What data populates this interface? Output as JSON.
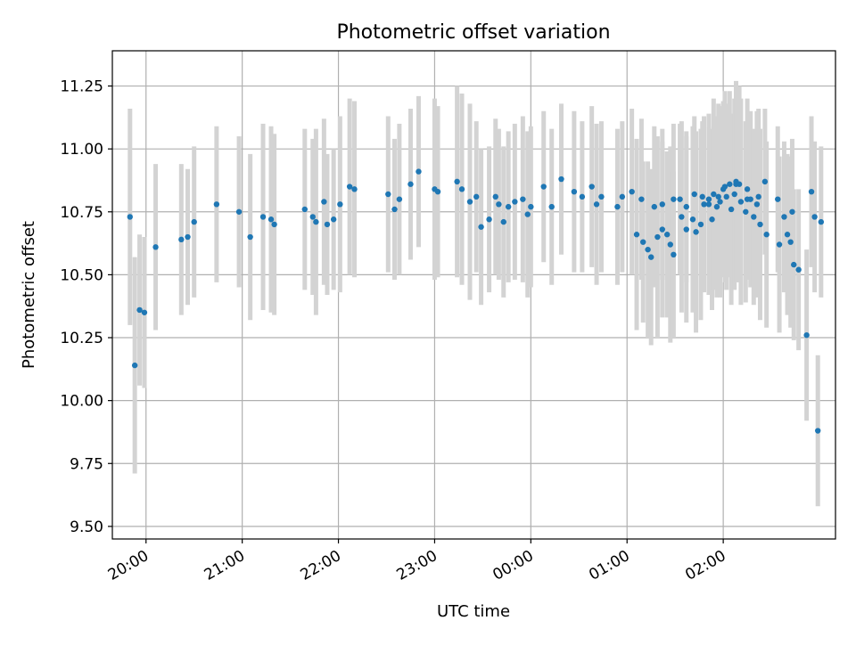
{
  "chart_data": {
    "type": "scatter",
    "title": "Photometric offset variation",
    "xlabel": "UTC time",
    "ylabel": "Photometric offset",
    "x_axis": {
      "kind": "time",
      "start_date": "2000-01-01",
      "xlim": [
        "2000-01-01T19:39:00",
        "2000-01-02T03:10:00"
      ],
      "ticks": [
        {
          "t": "2000-01-01T20:00:00",
          "label": "20:00"
        },
        {
          "t": "2000-01-01T21:00:00",
          "label": "21:00"
        },
        {
          "t": "2000-01-01T22:00:00",
          "label": "22:00"
        },
        {
          "t": "2000-01-01T23:00:00",
          "label": "23:00"
        },
        {
          "t": "2000-01-02T00:00:00",
          "label": "00:00"
        },
        {
          "t": "2000-01-02T01:00:00",
          "label": "01:00"
        },
        {
          "t": "2000-01-02T02:00:00",
          "label": "02:00"
        }
      ]
    },
    "y_axis": {
      "ylim": [
        9.45,
        11.39
      ],
      "ticks": [
        "9.50",
        "9.75",
        "10.00",
        "10.25",
        "10.50",
        "10.75",
        "11.00",
        "11.25"
      ]
    },
    "grid": true,
    "colors": {
      "marker": "#1f77b4",
      "errorbar": "#d3d3d3",
      "grid": "#b0b0b0"
    },
    "series": [
      {
        "x": [
          "2000-01-01T19:50:00",
          "2000-01-01T19:53:00",
          "2000-01-01T19:56:00",
          "2000-01-01T19:59:00",
          "2000-01-01T20:06:00",
          "2000-01-01T20:22:00",
          "2000-01-01T20:26:00",
          "2000-01-01T20:30:00",
          "2000-01-01T20:44:00",
          "2000-01-01T20:58:00",
          "2000-01-01T21:05:00",
          "2000-01-01T21:13:00",
          "2000-01-01T21:18:00",
          "2000-01-01T21:20:00",
          "2000-01-01T21:39:00",
          "2000-01-01T21:44:00",
          "2000-01-01T21:46:00",
          "2000-01-01T21:51:00",
          "2000-01-01T21:53:00",
          "2000-01-01T21:57:00",
          "2000-01-01T22:01:00",
          "2000-01-01T22:07:00",
          "2000-01-01T22:10:00",
          "2000-01-01T22:31:00",
          "2000-01-01T22:35:00",
          "2000-01-01T22:38:00",
          "2000-01-01T22:45:00",
          "2000-01-01T22:50:00",
          "2000-01-01T23:00:00",
          "2000-01-01T23:02:00",
          "2000-01-01T23:14:00",
          "2000-01-01T23:17:00",
          "2000-01-01T23:22:00",
          "2000-01-01T23:26:00",
          "2000-01-01T23:29:00",
          "2000-01-01T23:34:00",
          "2000-01-01T23:38:00",
          "2000-01-01T23:40:00",
          "2000-01-01T23:43:00",
          "2000-01-01T23:46:00",
          "2000-01-01T23:50:00",
          "2000-01-01T23:55:00",
          "2000-01-01T23:58:00",
          "2000-01-02T00:00:00",
          "2000-01-02T00:08:00",
          "2000-01-02T00:13:00",
          "2000-01-02T00:19:00",
          "2000-01-02T00:27:00",
          "2000-01-02T00:32:00",
          "2000-01-02T00:38:00",
          "2000-01-02T00:41:00",
          "2000-01-02T00:44:00",
          "2000-01-02T00:54:00",
          "2000-01-02T01:03:00",
          "2000-01-02T01:09:00",
          "2000-01-02T01:17:00",
          "2000-01-02T01:22:00",
          "2000-01-02T01:29:00",
          "2000-01-02T01:33:00",
          "2000-01-02T01:37:00",
          "2000-01-02T01:42:00",
          "2000-01-02T01:47:00",
          "2000-01-02T01:51:00",
          "2000-01-02T02:08:00",
          "2000-01-02T02:15:00",
          "2000-01-02T02:26:00",
          "2000-01-02T02:34:00",
          "2000-01-02T02:38:00",
          "2000-01-02T02:43:00",
          "2000-01-02T02:55:00",
          "2000-01-02T02:57:00",
          "2000-01-02T03:01:00"
        ],
        "y": [
          10.73,
          10.14,
          10.36,
          10.35,
          10.61,
          10.64,
          10.65,
          10.71,
          10.78,
          10.75,
          10.65,
          10.73,
          10.72,
          10.7,
          10.76,
          10.73,
          10.71,
          10.79,
          10.7,
          10.72,
          10.78,
          10.85,
          10.84,
          10.82,
          10.76,
          10.8,
          10.86,
          10.91,
          10.84,
          10.83,
          10.87,
          10.84,
          10.79,
          10.81,
          10.69,
          10.72,
          10.81,
          10.78,
          10.71,
          10.77,
          10.79,
          10.8,
          10.74,
          10.77,
          10.85,
          10.77,
          10.88,
          10.83,
          10.81,
          10.85,
          10.78,
          10.81,
          10.77,
          10.83,
          10.8,
          10.77,
          10.78,
          10.8,
          10.8,
          10.77,
          10.82,
          10.81,
          10.8,
          10.86,
          10.8,
          10.87,
          10.8,
          10.73,
          10.75,
          10.83,
          10.73,
          10.71
        ],
        "yerr": [
          0.43,
          0.43,
          0.3,
          0.3,
          0.33,
          0.3,
          0.27,
          0.3,
          0.31,
          0.3,
          0.33,
          0.37,
          0.37,
          0.36,
          0.32,
          0.31,
          0.37,
          0.33,
          0.28,
          0.28,
          0.35,
          0.35,
          0.35,
          0.31,
          0.28,
          0.3,
          0.3,
          0.3,
          0.36,
          0.34,
          0.38,
          0.38,
          0.39,
          0.3,
          0.31,
          0.29,
          0.31,
          0.3,
          0.3,
          0.3,
          0.31,
          0.33,
          0.33,
          0.32,
          0.3,
          0.31,
          0.3,
          0.32,
          0.3,
          0.32,
          0.32,
          0.3,
          0.31,
          0.33,
          0.32,
          0.32,
          0.3,
          0.3,
          0.3,
          0.3,
          0.31,
          0.3,
          0.29,
          0.3,
          0.3,
          0.29,
          0.29,
          0.3,
          0.29,
          0.3,
          0.3,
          0.3
        ]
      },
      {
        "x": [
          "2000-01-02T00:57:00",
          "2000-01-02T01:06:00",
          "2000-01-02T01:10:00",
          "2000-01-02T01:13:00",
          "2000-01-02T01:15:00",
          "2000-01-02T01:19:00",
          "2000-01-02T01:22:00",
          "2000-01-02T01:25:00",
          "2000-01-02T01:27:00",
          "2000-01-02T01:29:00",
          "2000-01-02T01:34:00",
          "2000-01-02T01:37:00",
          "2000-01-02T01:41:00",
          "2000-01-02T01:43:00",
          "2000-01-02T01:46:00",
          "2000-01-02T01:48:00",
          "2000-01-02T01:51:00",
          "2000-01-02T01:53:00",
          "2000-01-02T01:54:00",
          "2000-01-02T01:56:00",
          "2000-01-02T01:57:00",
          "2000-01-02T01:58:00",
          "2000-01-02T02:00:00",
          "2000-01-02T02:01:00",
          "2000-01-02T02:02:00",
          "2000-01-02T02:04:00",
          "2000-01-02T02:05:00",
          "2000-01-02T02:07:00",
          "2000-01-02T02:08:00",
          "2000-01-02T02:10:00",
          "2000-01-02T02:11:00",
          "2000-01-02T02:14:00",
          "2000-01-02T02:15:00",
          "2000-01-02T02:17:00",
          "2000-01-02T02:19:00",
          "2000-01-02T02:21:00",
          "2000-01-02T02:22:00",
          "2000-01-02T02:23:00",
          "2000-01-02T02:27:00",
          "2000-01-02T02:35:00",
          "2000-01-02T02:40:00",
          "2000-01-02T02:42:00",
          "2000-01-02T02:44:00",
          "2000-01-02T02:47:00",
          "2000-01-02T02:52:00",
          "2000-01-02T02:59:00"
        ],
        "y": [
          10.81,
          10.66,
          10.63,
          10.6,
          10.57,
          10.65,
          10.68,
          10.66,
          10.62,
          10.58,
          10.73,
          10.68,
          10.72,
          10.67,
          10.7,
          10.78,
          10.78,
          10.72,
          10.82,
          10.77,
          10.81,
          10.79,
          10.84,
          10.85,
          10.81,
          10.86,
          10.76,
          10.82,
          10.87,
          10.86,
          10.79,
          10.75,
          10.84,
          10.8,
          10.73,
          10.78,
          10.81,
          10.7,
          10.66,
          10.62,
          10.66,
          10.63,
          10.54,
          10.52,
          10.26,
          9.88
        ],
        "yerr": [
          0.3,
          0.38,
          0.32,
          0.35,
          0.35,
          0.4,
          0.35,
          0.33,
          0.39,
          0.33,
          0.38,
          0.37,
          0.37,
          0.4,
          0.38,
          0.35,
          0.36,
          0.36,
          0.38,
          0.36,
          0.37,
          0.38,
          0.35,
          0.38,
          0.37,
          0.37,
          0.38,
          0.38,
          0.4,
          0.39,
          0.41,
          0.36,
          0.36,
          0.35,
          0.35,
          0.37,
          0.35,
          0.38,
          0.37,
          0.35,
          0.32,
          0.34,
          0.3,
          0.32,
          0.34,
          0.3
        ]
      }
    ]
  }
}
